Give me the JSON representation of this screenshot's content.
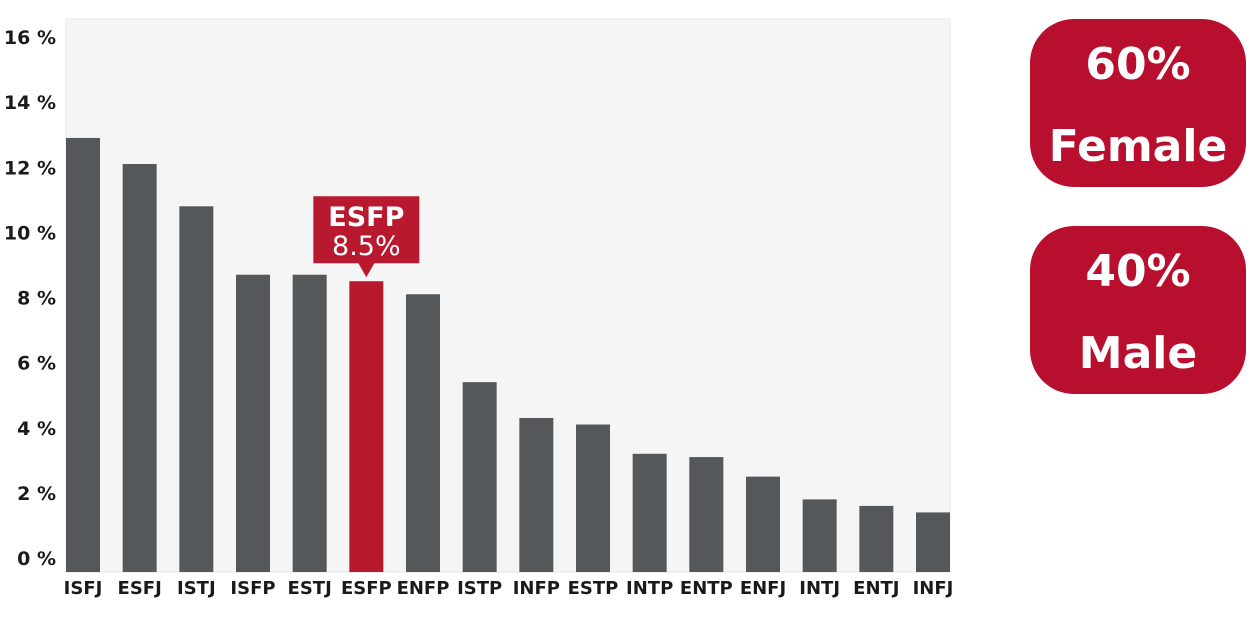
{
  "chart_data": {
    "type": "bar",
    "categories": [
      "ISFJ",
      "ESFJ",
      "ISTJ",
      "ISFP",
      "ESTJ",
      "ESFP",
      "ENFP",
      "ISTP",
      "INFP",
      "ESTP",
      "INTP",
      "ENTP",
      "ENFJ",
      "INTJ",
      "ENTJ",
      "INFJ"
    ],
    "values": [
      12.9,
      12.1,
      10.8,
      8.7,
      8.7,
      8.5,
      8.1,
      5.4,
      4.3,
      4.1,
      3.2,
      3.1,
      2.5,
      1.8,
      1.6,
      1.4
    ],
    "ylim": [
      0,
      16
    ],
    "yticks": [
      0,
      2,
      4,
      6,
      8,
      10,
      12,
      14,
      16
    ],
    "ytick_labels": [
      "0 %",
      "2 %",
      "4 %",
      "6 %",
      "8 %",
      "10 %",
      "12 %",
      "14 %",
      "16 %"
    ],
    "highlight": {
      "category": "ESFP",
      "category_label": "ESFP",
      "value_label": "8.5%"
    },
    "grid": false,
    "colors": {
      "bar": "#55585b",
      "highlight": "#b9192f",
      "plot_background": "#f5f5f6"
    }
  },
  "stats": [
    {
      "value": "60%",
      "label": "Female"
    },
    {
      "value": "40%",
      "label": "Male"
    }
  ],
  "colors": {
    "badge": "#b80f2e"
  }
}
